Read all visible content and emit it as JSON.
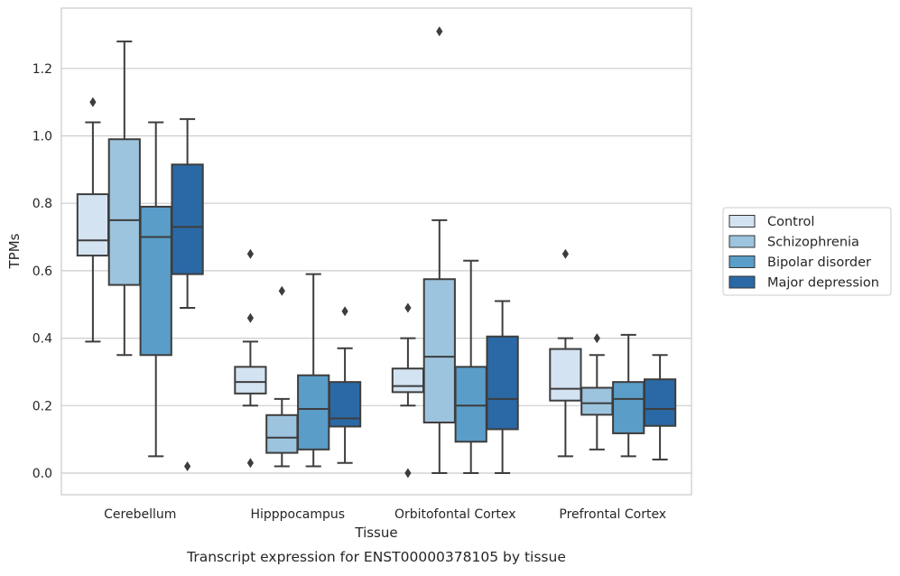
{
  "chart_data": {
    "type": "box",
    "title": "",
    "caption": "Transcript expression for ENST00000378105 by tissue",
    "xlabel": "Tissue",
    "ylabel": "TPMs",
    "ylim": [
      -0.065,
      1.37
    ],
    "yticks": [
      0.0,
      0.2,
      0.4,
      0.6,
      0.8,
      1.0,
      1.2
    ],
    "ytick_labels": [
      "0.0",
      "0.2",
      "0.4",
      "0.6",
      "0.8",
      "1.0",
      "1.2"
    ],
    "grid": "horizontal",
    "legend_position": "right",
    "categories": [
      "Cerebellum",
      "Hipppocampus",
      "Orbitofontal Cortex",
      "Prefrontal Cortex"
    ],
    "series": [
      {
        "name": "Control",
        "color": "#d3e3f2",
        "boxes": [
          {
            "whislo": 0.39,
            "q1": 0.645,
            "med": 0.69,
            "q3": 0.827,
            "whishi": 1.04,
            "fliers": [
              1.1
            ]
          },
          {
            "whislo": 0.2,
            "q1": 0.236,
            "med": 0.27,
            "q3": 0.315,
            "whishi": 0.39,
            "fliers": [
              0.65,
              0.46,
              0.03
            ]
          },
          {
            "whislo": 0.2,
            "q1": 0.24,
            "med": 0.258,
            "q3": 0.31,
            "whishi": 0.4,
            "fliers": [
              0.49,
              0.0
            ]
          },
          {
            "whislo": 0.05,
            "q1": 0.215,
            "med": 0.25,
            "q3": 0.368,
            "whishi": 0.4,
            "fliers": [
              0.65
            ]
          }
        ]
      },
      {
        "name": "Schizophrenia",
        "color": "#9dc4de",
        "boxes": [
          {
            "whislo": 0.35,
            "q1": 0.558,
            "med": 0.75,
            "q3": 0.99,
            "whishi": 1.28,
            "fliers": []
          },
          {
            "whislo": 0.02,
            "q1": 0.06,
            "med": 0.105,
            "q3": 0.172,
            "whishi": 0.22,
            "fliers": [
              0.54
            ]
          },
          {
            "whislo": 0.0,
            "q1": 0.15,
            "med": 0.345,
            "q3": 0.575,
            "whishi": 0.75,
            "fliers": [
              1.31
            ]
          },
          {
            "whislo": 0.07,
            "q1": 0.173,
            "med": 0.207,
            "q3": 0.253,
            "whishi": 0.35,
            "fliers": [
              0.4
            ]
          }
        ]
      },
      {
        "name": "Bipolar disorder",
        "color": "#5a9dc8",
        "boxes": [
          {
            "whislo": 0.05,
            "q1": 0.35,
            "med": 0.7,
            "q3": 0.79,
            "whishi": 1.04,
            "fliers": []
          },
          {
            "whislo": 0.02,
            "q1": 0.07,
            "med": 0.19,
            "q3": 0.29,
            "whishi": 0.59,
            "fliers": []
          },
          {
            "whislo": 0.0,
            "q1": 0.093,
            "med": 0.2,
            "q3": 0.315,
            "whishi": 0.63,
            "fliers": []
          },
          {
            "whislo": 0.05,
            "q1": 0.118,
            "med": 0.22,
            "q3": 0.27,
            "whishi": 0.41,
            "fliers": []
          }
        ]
      },
      {
        "name": "Major depression",
        "color": "#2b69a6",
        "boxes": [
          {
            "whislo": 0.49,
            "q1": 0.59,
            "med": 0.73,
            "q3": 0.915,
            "whishi": 1.05,
            "fliers": [
              0.02
            ]
          },
          {
            "whislo": 0.03,
            "q1": 0.138,
            "med": 0.162,
            "q3": 0.27,
            "whishi": 0.37,
            "fliers": [
              0.48
            ]
          },
          {
            "whislo": 0.0,
            "q1": 0.13,
            "med": 0.22,
            "q3": 0.405,
            "whishi": 0.51,
            "fliers": []
          },
          {
            "whislo": 0.04,
            "q1": 0.14,
            "med": 0.19,
            "q3": 0.278,
            "whishi": 0.35,
            "fliers": []
          }
        ]
      }
    ]
  }
}
